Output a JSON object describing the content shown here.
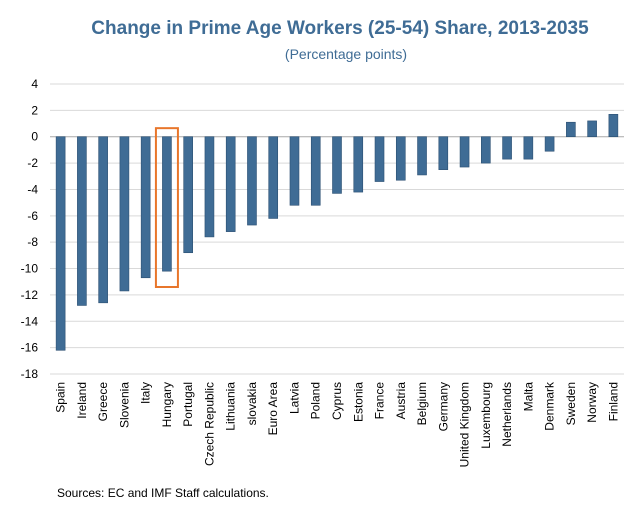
{
  "chart_data": {
    "type": "bar",
    "title": "Change in Prime Age Workers (25-54) Share, 2013-2035",
    "subtitle": "(Percentage points)",
    "xlabel": "",
    "ylabel": "",
    "ylim": [
      -18,
      4
    ],
    "yticks": [
      4,
      2,
      0,
      -2,
      -4,
      -6,
      -8,
      -10,
      -12,
      -14,
      -16,
      -18
    ],
    "grid": true,
    "categories": [
      "Spain",
      "Ireland",
      "Greece",
      "Slovenia",
      "Italy",
      "Hungary",
      "Portugal",
      "Czech Republic",
      "Lithuania",
      "slovakia",
      "Euro Area",
      "Latvia",
      "Poland",
      "Cyprus",
      "Estonia",
      "France",
      "Austria",
      "Belgium",
      "Germany",
      "United Kingdom",
      "Luxembourg",
      "Netherlands",
      "Malta",
      "Denmark",
      "Sweden",
      "Norway",
      "Finland"
    ],
    "values": [
      -16.2,
      -12.8,
      -12.6,
      -11.7,
      -10.7,
      -10.2,
      -8.8,
      -7.6,
      -7.2,
      -6.7,
      -6.2,
      -5.2,
      -5.2,
      -4.3,
      -4.2,
      -3.4,
      -3.3,
      -2.9,
      -2.5,
      -2.3,
      -2.0,
      -1.7,
      -1.7,
      -1.1,
      1.1,
      1.2,
      1.7
    ],
    "highlight": "Hungary",
    "bar_color": "#3f6c95",
    "highlight_color": "#e8762b"
  },
  "footer": {
    "source": "Sources: EC and IMF Staff calculations."
  }
}
